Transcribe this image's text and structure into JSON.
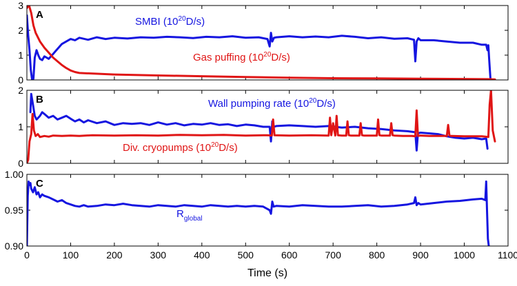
{
  "chart_data": {
    "type": "line",
    "xlabel": "Time (s)",
    "x_ticks": [
      "0",
      "100",
      "200",
      "300",
      "400",
      "500",
      "600",
      "700",
      "800",
      "900",
      "1000",
      "1100"
    ],
    "xlim": [
      0,
      1100
    ],
    "panels": [
      {
        "letter": "A",
        "ylim": [
          0,
          3
        ],
        "y_ticks": [
          "0",
          "1",
          "2",
          "3"
        ],
        "series": [
          {
            "name": "SMBI",
            "label": {
              "prefix": "SMBI (10",
              "sup": "20",
              "suffix": "D/s)"
            },
            "color": "#1515e0",
            "x": [
              0,
              3,
              6,
              9,
              12,
              15,
              18,
              22,
              26,
              30,
              35,
              40,
              45,
              50,
              55,
              60,
              65,
              70,
              75,
              80,
              90,
              100,
              110,
              120,
              140,
              160,
              180,
              200,
              230,
              260,
              290,
              320,
              350,
              380,
              410,
              440,
              470,
              500,
              530,
              550,
              555,
              558,
              561,
              565,
              570,
              600,
              630,
              660,
              690,
              720,
              750,
              780,
              810,
              840,
              870,
              885,
              888,
              891,
              895,
              900,
              930,
              960,
              990,
              1020,
              1040,
              1050,
              1053,
              1055,
              1057,
              1060
            ],
            "y": [
              2.6,
              1.8,
              1.2,
              0.4,
              0.0,
              0.05,
              0.9,
              1.2,
              1.0,
              0.85,
              0.8,
              0.95,
              0.9,
              0.85,
              0.95,
              1.05,
              1.15,
              1.25,
              1.35,
              1.45,
              1.55,
              1.65,
              1.6,
              1.7,
              1.62,
              1.72,
              1.65,
              1.7,
              1.67,
              1.72,
              1.7,
              1.74,
              1.72,
              1.69,
              1.74,
              1.72,
              1.76,
              1.7,
              1.72,
              1.65,
              1.35,
              1.9,
              1.55,
              1.7,
              1.72,
              1.76,
              1.72,
              1.75,
              1.72,
              1.78,
              1.74,
              1.68,
              1.72,
              1.66,
              1.68,
              1.62,
              0.75,
              1.55,
              1.68,
              1.6,
              1.6,
              1.55,
              1.5,
              1.5,
              1.42,
              1.42,
              1.2,
              1.4,
              0.8,
              0.0
            ]
          },
          {
            "name": "Gas puffing",
            "label": {
              "prefix": "Gas puffing (10",
              "sup": "20",
              "suffix": "D/s)"
            },
            "color": "#e01515",
            "x": [
              0,
              5,
              10,
              15,
              20,
              30,
              40,
              50,
              60,
              70,
              80,
              90,
              100,
              110,
              120,
              200,
              300,
              400,
              500,
              600,
              700,
              800,
              900,
              1000,
              1055,
              1070
            ],
            "y": [
              2.9,
              3.0,
              2.7,
              2.2,
              1.9,
              1.55,
              1.3,
              1.1,
              0.9,
              0.75,
              0.6,
              0.48,
              0.38,
              0.32,
              0.28,
              0.22,
              0.18,
              0.15,
              0.12,
              0.09,
              0.07,
              0.06,
              0.05,
              0.04,
              0.03,
              0.02
            ]
          }
        ]
      },
      {
        "letter": "B",
        "ylim": [
          0,
          2
        ],
        "y_ticks": [
          "0",
          "1",
          "2"
        ],
        "series": [
          {
            "name": "Wall pumping rate",
            "label": {
              "prefix": "Wall pumping rate (10",
              "sup": "20",
              "suffix": "D/s)"
            },
            "color": "#1515e0",
            "x": [
              8,
              10,
              14,
              18,
              22,
              26,
              30,
              35,
              40,
              50,
              60,
              70,
              80,
              90,
              100,
              110,
              120,
              130,
              140,
              160,
              180,
              200,
              220,
              240,
              260,
              280,
              300,
              320,
              340,
              360,
              380,
              400,
              420,
              440,
              460,
              480,
              500,
              520,
              540,
              555,
              558,
              561,
              565,
              570,
              600,
              630,
              660,
              690,
              720,
              750,
              780,
              810,
              840,
              870,
              888,
              891,
              894,
              900,
              920,
              940,
              960,
              980,
              1000,
              1020,
              1040,
              1050,
              1053
            ],
            "y": [
              1.4,
              1.9,
              1.6,
              1.3,
              1.2,
              1.25,
              1.3,
              1.4,
              1.35,
              1.25,
              1.3,
              1.2,
              1.25,
              1.3,
              1.22,
              1.15,
              1.2,
              1.12,
              1.18,
              1.1,
              1.15,
              1.05,
              1.1,
              1.08,
              1.1,
              1.05,
              1.12,
              1.06,
              1.1,
              1.04,
              1.08,
              1.06,
              1.1,
              1.05,
              1.07,
              1.02,
              1.06,
              1.04,
              1.0,
              1.0,
              0.6,
              1.15,
              1.0,
              1.02,
              1.04,
              1.02,
              1.0,
              1.02,
              0.98,
              1.0,
              0.96,
              0.94,
              0.9,
              0.88,
              0.85,
              0.35,
              0.82,
              0.84,
              0.82,
              0.8,
              0.74,
              0.7,
              0.68,
              0.7,
              0.66,
              0.68,
              0.4
            ]
          },
          {
            "name": "Div. cryopumps",
            "label": {
              "prefix": "Div. cryopumps (10",
              "sup": "20",
              "suffix": "D/s)"
            },
            "color": "#e01515",
            "x": [
              0,
              3,
              6,
              10,
              13,
              16,
              20,
              25,
              30,
              40,
              50,
              60,
              80,
              100,
              120,
              150,
              200,
              250,
              300,
              350,
              400,
              450,
              500,
              550,
              560,
              563,
              566,
              600,
              650,
              690,
              693,
              696,
              700,
              705,
              708,
              711,
              720,
              730,
              733,
              736,
              740,
              760,
              763,
              766,
              770,
              800,
              803,
              806,
              810,
              830,
              833,
              836,
              840,
              860,
              880,
              888,
              891,
              894,
              900,
              920,
              940,
              960,
              963,
              966,
              970,
              1000,
              1040,
              1055,
              1058,
              1061,
              1065,
              1070
            ],
            "y": [
              0.0,
              0.1,
              0.6,
              0.8,
              1.35,
              0.9,
              0.75,
              0.8,
              0.72,
              0.75,
              0.73,
              0.76,
              0.75,
              0.76,
              0.75,
              0.77,
              0.76,
              0.77,
              0.76,
              0.78,
              0.77,
              0.78,
              0.76,
              0.77,
              0.76,
              1.2,
              0.77,
              0.76,
              0.77,
              0.76,
              1.25,
              0.77,
              1.1,
              0.76,
              1.3,
              0.77,
              0.76,
              0.76,
              1.15,
              0.77,
              0.76,
              0.76,
              1.1,
              0.77,
              0.76,
              0.76,
              1.2,
              0.77,
              0.76,
              0.76,
              1.1,
              0.77,
              0.76,
              0.75,
              0.75,
              0.74,
              1.45,
              0.75,
              0.76,
              0.75,
              0.75,
              0.75,
              1.05,
              0.76,
              0.75,
              0.74,
              0.74,
              0.72,
              1.6,
              2.0,
              0.9,
              0.6
            ]
          }
        ]
      },
      {
        "letter": "C",
        "ylim": [
          0.9,
          1.0
        ],
        "y_ticks": [
          "0.90",
          "0.95",
          "1.00"
        ],
        "series": [
          {
            "name": "R_global",
            "label": {
              "prefix": "R",
              "sub": "global"
            },
            "color": "#1515e0",
            "x": [
              0,
              2,
              4,
              6,
              8,
              10,
              14,
              18,
              22,
              26,
              30,
              35,
              40,
              50,
              60,
              70,
              80,
              90,
              100,
              110,
              120,
              130,
              140,
              160,
              180,
              200,
              220,
              240,
              260,
              280,
              300,
              320,
              340,
              360,
              380,
              400,
              420,
              440,
              460,
              480,
              500,
              520,
              540,
              555,
              558,
              561,
              564,
              570,
              600,
              630,
              660,
              690,
              720,
              750,
              780,
              810,
              840,
              870,
              885,
              888,
              891,
              895,
              900,
              930,
              960,
              990,
              1020,
              1040,
              1048,
              1050,
              1052,
              1054,
              1056
            ],
            "y": [
              0.9,
              0.97,
              0.99,
              0.985,
              0.988,
              0.98,
              0.975,
              0.982,
              0.972,
              0.975,
              0.968,
              0.972,
              0.97,
              0.968,
              0.965,
              0.962,
              0.964,
              0.96,
              0.958,
              0.956,
              0.955,
              0.957,
              0.955,
              0.956,
              0.958,
              0.957,
              0.959,
              0.957,
              0.956,
              0.955,
              0.957,
              0.956,
              0.955,
              0.957,
              0.956,
              0.955,
              0.957,
              0.956,
              0.955,
              0.956,
              0.955,
              0.956,
              0.955,
              0.95,
              0.945,
              0.962,
              0.955,
              0.956,
              0.955,
              0.957,
              0.956,
              0.955,
              0.955,
              0.956,
              0.957,
              0.955,
              0.956,
              0.958,
              0.96,
              0.968,
              0.957,
              0.96,
              0.958,
              0.96,
              0.962,
              0.963,
              0.965,
              0.966,
              0.964,
              0.99,
              0.95,
              0.91,
              0.9
            ]
          }
        ]
      }
    ]
  }
}
